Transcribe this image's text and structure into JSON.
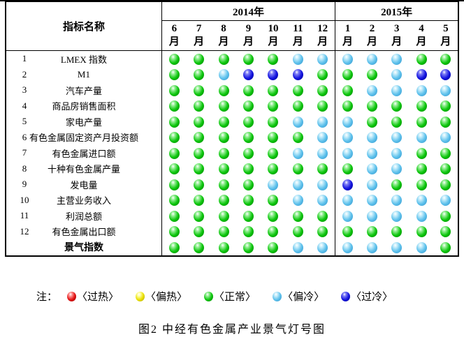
{
  "caption": "图2  中经有色金属产业景气灯号图",
  "colors": {
    "R": {
      "name": "red-hot",
      "base": "#e31212",
      "light": "#ff9a9a",
      "dark": "#8f0000"
    },
    "Y": {
      "name": "yellow-warm",
      "base": "#eae000",
      "light": "#ffffa8",
      "dark": "#a8a000"
    },
    "N": {
      "name": "green-normal",
      "base": "#0cc60c",
      "light": "#9af09a",
      "dark": "#067d06"
    },
    "C": {
      "name": "lightblue-cool",
      "base": "#5ec1ec",
      "light": "#c8eefb",
      "dark": "#2f93c9"
    },
    "B": {
      "name": "darkblue-cold",
      "base": "#1414e0",
      "light": "#8080f5",
      "dark": "#000088"
    }
  },
  "table": {
    "corner_header": "指标名称",
    "month_unit": "月",
    "year_groups": [
      {
        "label": "2014年",
        "months": [
          "6",
          "7",
          "8",
          "9",
          "10",
          "11",
          "12"
        ]
      },
      {
        "label": "2015年",
        "months": [
          "1",
          "2",
          "3",
          "4",
          "5"
        ]
      }
    ],
    "rows": [
      {
        "no": "1",
        "name": "LMEX 指数",
        "bold": false,
        "lights": "NNNNNCCCCCNN"
      },
      {
        "no": "2",
        "name": "M1",
        "bold": false,
        "lights": "NNCBBBNNNCBB"
      },
      {
        "no": "3",
        "name": "汽车产量",
        "bold": false,
        "lights": "NNNNNNNNCCCC"
      },
      {
        "no": "4",
        "name": "商品房销售面积",
        "bold": false,
        "lights": "NNNNNNNNNNNN"
      },
      {
        "no": "5",
        "name": "家电产量",
        "bold": false,
        "lights": "NNNNNCCCNNNN"
      },
      {
        "no": "6",
        "name": "有色金属固定资产月投资额",
        "bold": false,
        "lights": "NNNNNNCCCCCC"
      },
      {
        "no": "7",
        "name": "有色金属进口额",
        "bold": false,
        "lights": "NNNNNCCCCCNN"
      },
      {
        "no": "8",
        "name": "十种有色金属产量",
        "bold": false,
        "lights": "NNNNNNNNCCNN"
      },
      {
        "no": "9",
        "name": "发电量",
        "bold": false,
        "lights": "NNNNCCCBCNNN"
      },
      {
        "no": "10",
        "name": "主营业务收入",
        "bold": false,
        "lights": "NNNNNCCCCCCC"
      },
      {
        "no": "11",
        "name": "利润总额",
        "bold": false,
        "lights": "NNNNNNNCCCCN"
      },
      {
        "no": "12",
        "name": "有色金属出口额",
        "bold": false,
        "lights": "NNNNNNNNNNNN"
      },
      {
        "no": "",
        "name": "景气指数",
        "bold": true,
        "lights": "NNNNNCCCCCCN"
      }
    ]
  },
  "legend": {
    "prefix": "注：",
    "items": [
      {
        "status": "R",
        "label": "〈过热〉"
      },
      {
        "status": "Y",
        "label": "〈偏热〉"
      },
      {
        "status": "N",
        "label": "〈正常〉"
      },
      {
        "status": "C",
        "label": "〈偏冷〉"
      },
      {
        "status": "B",
        "label": "〈过冷〉"
      }
    ]
  },
  "chart_data": {
    "type": "heatmap",
    "title": "中经有色金属产业景气灯号图",
    "figure_label": "图2",
    "x": [
      "2014-6月",
      "2014-7月",
      "2014-8月",
      "2014-9月",
      "2014-10月",
      "2014-11月",
      "2014-12月",
      "2015-1月",
      "2015-2月",
      "2015-3月",
      "2015-4月",
      "2015-5月"
    ],
    "code_map": {
      "R": "过热",
      "Y": "偏热",
      "N": "正常",
      "C": "偏冷",
      "B": "过冷"
    },
    "rows": [
      {
        "name": "LMEX 指数",
        "values": "NNNNNCCCCCNN"
      },
      {
        "name": "M1",
        "values": "NNCBBBNNNCBB"
      },
      {
        "name": "汽车产量",
        "values": "NNNNNNNNCCCC"
      },
      {
        "name": "商品房销售面积",
        "values": "NNNNNNNNNNNN"
      },
      {
        "name": "家电产量",
        "values": "NNNNNCCCNNNN"
      },
      {
        "name": "有色金属固定资产月投资额",
        "values": "NNNNNNCCCCCC"
      },
      {
        "name": "有色金属进口额",
        "values": "NNNNNCCCCCNN"
      },
      {
        "name": "十种有色金属产量",
        "values": "NNNNNNNNCCNN"
      },
      {
        "name": "发电量",
        "values": "NNNNCCCBCNNN"
      },
      {
        "name": "主营业务收入",
        "values": "NNNNNCCCCCCC"
      },
      {
        "name": "利润总额",
        "values": "NNNNNNNCCCCN"
      },
      {
        "name": "有色金属出口额",
        "values": "NNNNNNNNNNNN"
      },
      {
        "name": "景气指数",
        "values": "NNNNNCCCCCCN"
      }
    ]
  }
}
